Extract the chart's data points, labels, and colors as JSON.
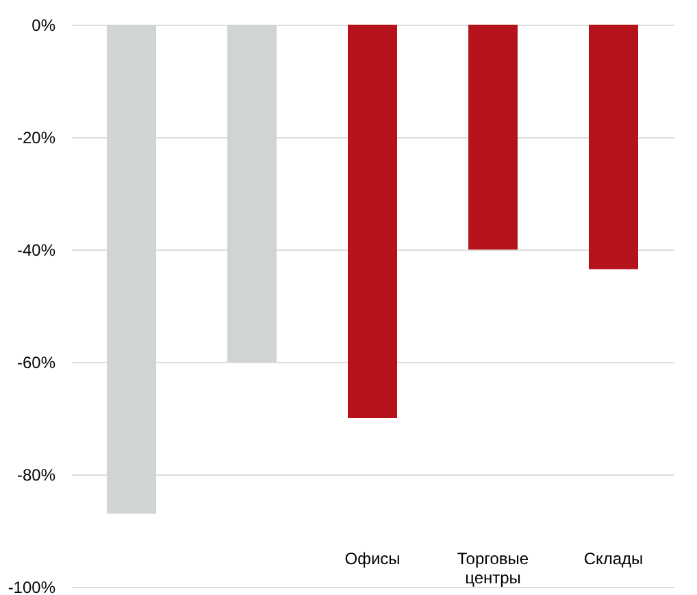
{
  "chart_data": {
    "type": "bar",
    "categories": [
      null,
      null,
      "Офисы",
      "Торговые центры",
      "Склады"
    ],
    "values": [
      -87,
      -60,
      -70,
      -40,
      -43.5
    ],
    "colors": [
      "#d0d4d4",
      "#d0d4d4",
      "#b5121b",
      "#b5121b",
      "#b5121b"
    ],
    "ylim": [
      -100,
      0
    ],
    "yticks": [
      {
        "value": -100,
        "label": "-100%"
      },
      {
        "value": -80,
        "label": "-80%"
      },
      {
        "value": -60,
        "label": "-60%"
      },
      {
        "value": -40,
        "label": "-40%"
      },
      {
        "value": -20,
        "label": "-20%"
      },
      {
        "value": 0,
        "label": "0%"
      }
    ],
    "grid": "y"
  }
}
